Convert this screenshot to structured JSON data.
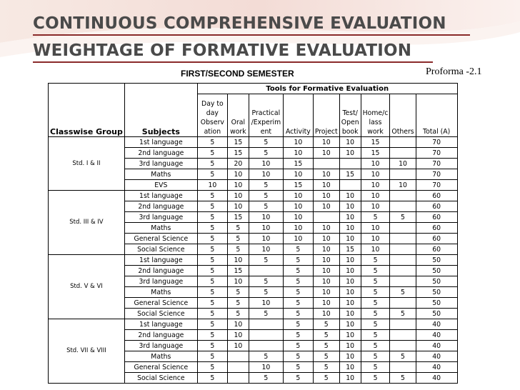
{
  "title_line1": "CONTINUOUS COMPREHENSIVE EVALUATION",
  "title_line2": "WEIGHTAGE OF FORMATIVE EVALUATION",
  "semester": "FIRST/SECOND  SEMESTER",
  "proforma": "Proforma -2.1",
  "table": {
    "tools_title": "Tools for Formative Evaluation",
    "headers": {
      "classwise": "Classwise Group",
      "subjects": "Subjects",
      "day_to_day": [
        "Day to",
        "day",
        "Observ",
        "ation"
      ],
      "oral": [
        "Oral",
        "work"
      ],
      "practical": [
        "Practical",
        "/Experim",
        "ent"
      ],
      "activity": "Activity",
      "project": "Project",
      "test": [
        "Test/",
        "Open",
        "book"
      ],
      "home": [
        "Home/c",
        "lass",
        "work"
      ],
      "others": "Others",
      "total": "Total (A)"
    },
    "groups": [
      {
        "name": "Std. I & II",
        "rows": [
          [
            "1st language",
            "5",
            "15",
            "5",
            "10",
            "10",
            "10",
            "15",
            "",
            "70"
          ],
          [
            "2nd language",
            "5",
            "15",
            "5",
            "10",
            "10",
            "10",
            "15",
            "",
            "70"
          ],
          [
            "3rd language",
            "5",
            "20",
            "10",
            "15",
            "",
            "",
            "10",
            "10",
            "70"
          ],
          [
            "Maths",
            "5",
            "10",
            "10",
            "10",
            "10",
            "15",
            "10",
            "",
            "70"
          ],
          [
            "EVS",
            "10",
            "10",
            "5",
            "15",
            "10",
            "",
            "10",
            "10",
            "70"
          ]
        ]
      },
      {
        "name": "Std. III & IV",
        "rows": [
          [
            "1st language",
            "5",
            "10",
            "5",
            "10",
            "10",
            "10",
            "10",
            "",
            "60"
          ],
          [
            "2nd language",
            "5",
            "10",
            "5",
            "10",
            "10",
            "10",
            "10",
            "",
            "60"
          ],
          [
            "3rd language",
            "5",
            "15",
            "10",
            "10",
            "",
            "10",
            "5",
            "5",
            "60"
          ],
          [
            "Maths",
            "5",
            "5",
            "10",
            "10",
            "10",
            "10",
            "10",
            "",
            "60"
          ],
          [
            "General Science",
            "5",
            "5",
            "10",
            "10",
            "10",
            "10",
            "10",
            "",
            "60"
          ],
          [
            "Social Science",
            "5",
            "5",
            "10",
            "5",
            "10",
            "15",
            "10",
            "",
            "60"
          ]
        ]
      },
      {
        "name": "Std. V & VI",
        "rows": [
          [
            "1st language",
            "5",
            "10",
            "5",
            "5",
            "10",
            "10",
            "5",
            "",
            "50"
          ],
          [
            "2nd language",
            "5",
            "15",
            "",
            "5",
            "10",
            "10",
            "5",
            "",
            "50"
          ],
          [
            "3rd language",
            "5",
            "10",
            "5",
            "5",
            "10",
            "10",
            "5",
            "",
            "50"
          ],
          [
            "Maths",
            "5",
            "5",
            "5",
            "5",
            "10",
            "10",
            "5",
            "5",
            "50"
          ],
          [
            "General Science",
            "5",
            "5",
            "10",
            "5",
            "10",
            "10",
            "5",
            "",
            "50"
          ],
          [
            "Social Science",
            "5",
            "5",
            "5",
            "5",
            "10",
            "10",
            "5",
            "5",
            "50"
          ]
        ]
      },
      {
        "name": "Std. VII & VIII",
        "rows": [
          [
            "1st language",
            "5",
            "10",
            "",
            "5",
            "5",
            "10",
            "5",
            "",
            "40"
          ],
          [
            "2nd language",
            "5",
            "10",
            "",
            "5",
            "5",
            "10",
            "5",
            "",
            "40"
          ],
          [
            "3rd language",
            "5",
            "10",
            "",
            "5",
            "5",
            "10",
            "5",
            "",
            "40"
          ],
          [
            "Maths",
            "5",
            "",
            "5",
            "5",
            "5",
            "10",
            "5",
            "5",
            "40"
          ],
          [
            "General Science",
            "5",
            "",
            "10",
            "5",
            "5",
            "10",
            "5",
            "",
            "40"
          ],
          [
            "Social Science",
            "5",
            "",
            "5",
            "5",
            "5",
            "10",
            "5",
            "5",
            "40"
          ]
        ]
      }
    ]
  }
}
